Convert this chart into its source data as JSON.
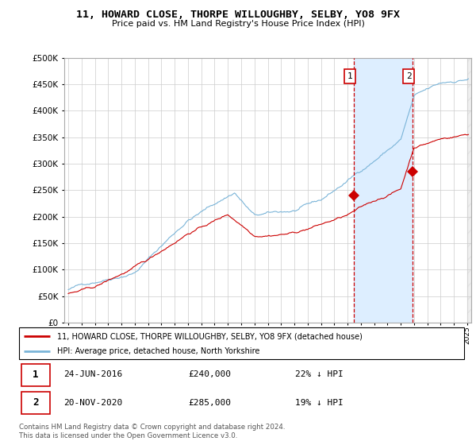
{
  "title": "11, HOWARD CLOSE, THORPE WILLOUGHBY, SELBY, YO8 9FX",
  "subtitle": "Price paid vs. HM Land Registry's House Price Index (HPI)",
  "legend_line1": "11, HOWARD CLOSE, THORPE WILLOUGHBY, SELBY, YO8 9FX (detached house)",
  "legend_line2": "HPI: Average price, detached house, North Yorkshire",
  "transaction1_date": "24-JUN-2016",
  "transaction1_price": "£240,000",
  "transaction1_hpi": "22% ↓ HPI",
  "transaction2_date": "20-NOV-2020",
  "transaction2_price": "£285,000",
  "transaction2_hpi": "19% ↓ HPI",
  "footnote": "Contains HM Land Registry data © Crown copyright and database right 2024.\nThis data is licensed under the Open Government Licence v3.0.",
  "hpi_color": "#7ab4d8",
  "price_color": "#cc0000",
  "vline_color": "#cc0000",
  "shade_color": "#ddeeff",
  "background_color": "#ffffff",
  "grid_color": "#cccccc",
  "transaction1_x": 2016.48,
  "transaction1_y": 240000,
  "transaction2_x": 2020.9,
  "transaction2_y": 285000,
  "ylim": [
    0,
    500000
  ],
  "xlim": [
    1994.7,
    2025.3
  ]
}
